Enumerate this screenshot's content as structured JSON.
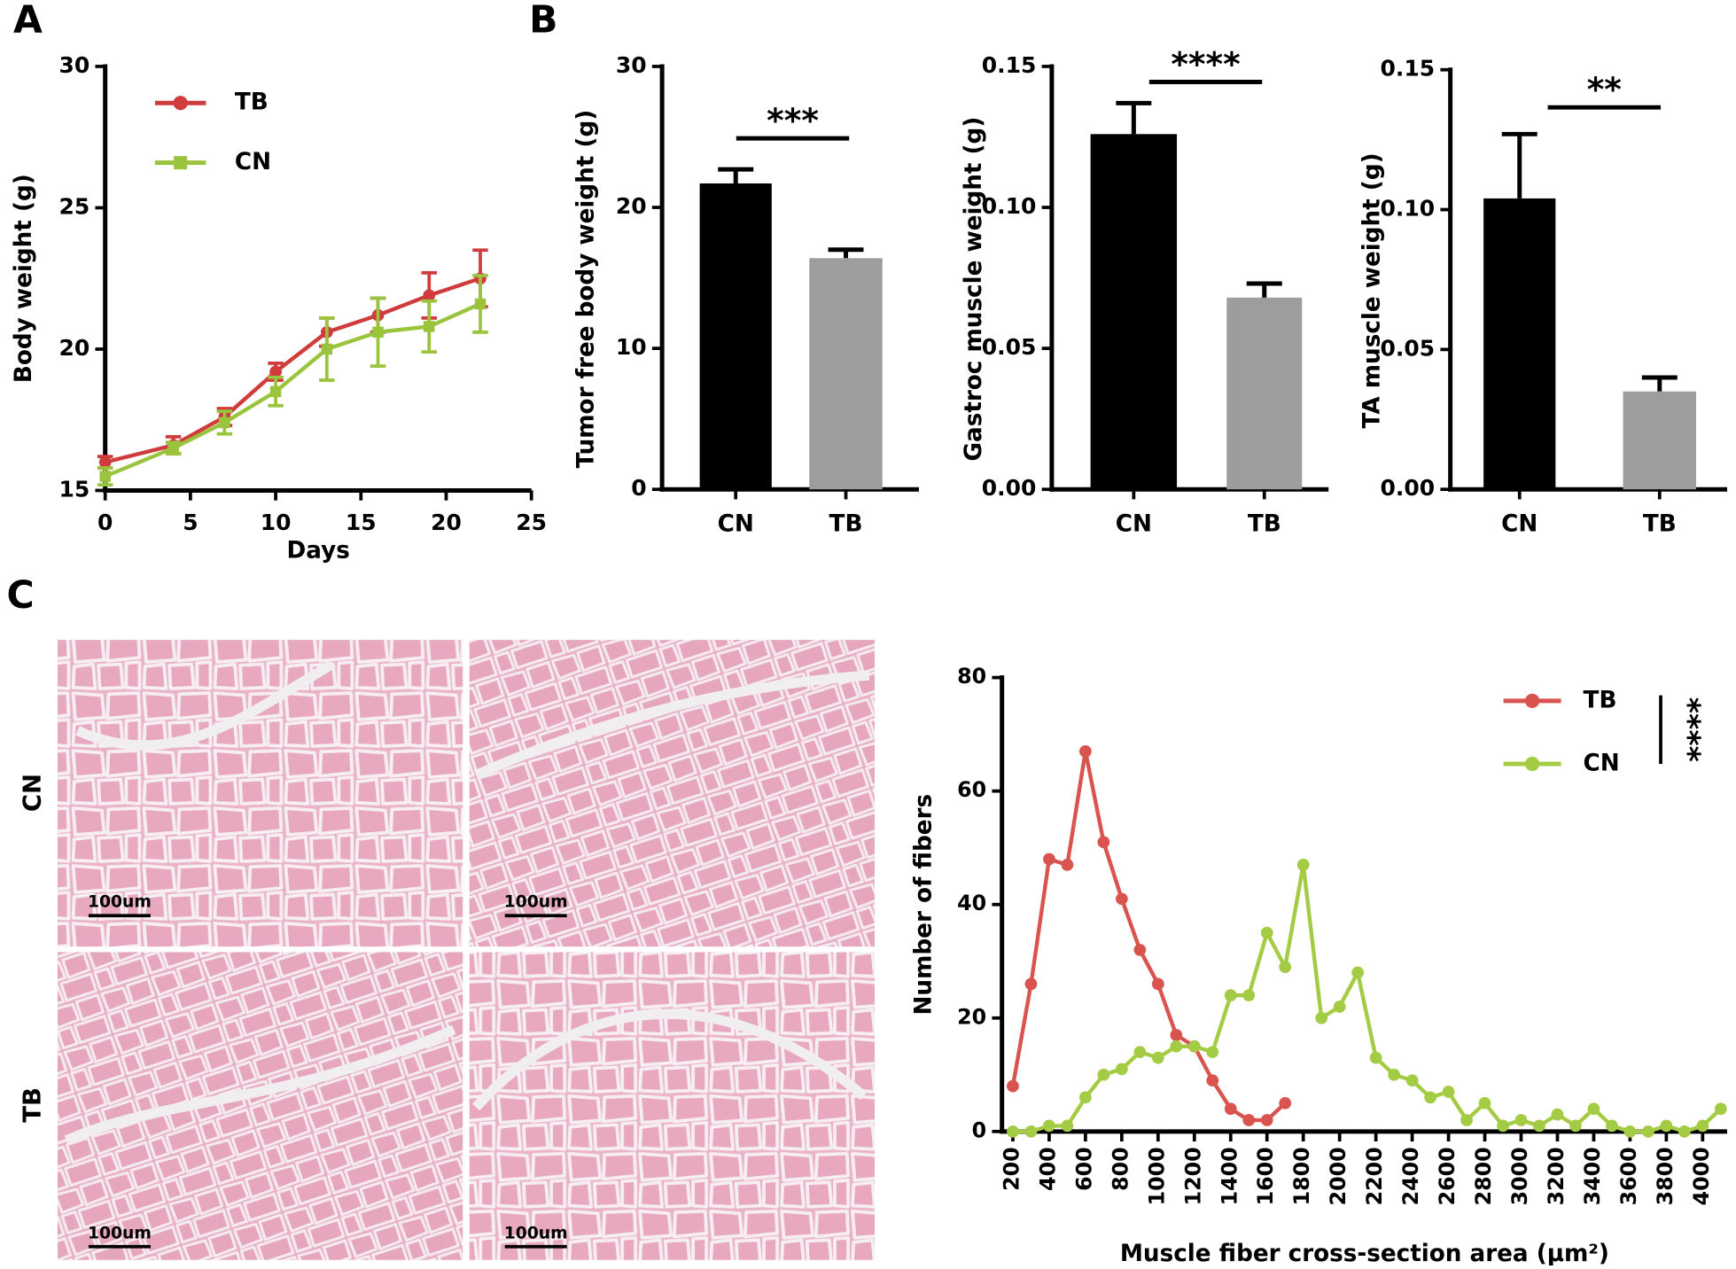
{
  "panel_labels": [
    "A",
    "B",
    "C"
  ],
  "histology": {
    "row_labels": [
      "CN",
      "TB"
    ],
    "scale_bar": "100um"
  },
  "chart_data": [
    {
      "type": "line",
      "x_label": "Days",
      "y_label": "Body weight (g)",
      "x": [
        0,
        4,
        7,
        10,
        13,
        16,
        19,
        22
      ],
      "xlim": [
        0,
        25
      ],
      "xticks": [
        0,
        5,
        10,
        15,
        20,
        25
      ],
      "ylim": [
        15,
        30
      ],
      "yticks": [
        15,
        20,
        25,
        30
      ],
      "legend": "upper left",
      "series": [
        {
          "name": "TB",
          "color": "#d03b3b",
          "marker": "circle",
          "values": [
            16.0,
            16.6,
            17.6,
            19.2,
            20.6,
            21.2,
            21.9,
            22.5
          ],
          "errors": [
            0.2,
            0.3,
            0.3,
            0.3,
            0.5,
            0.6,
            0.8,
            1.0
          ]
        },
        {
          "name": "CN",
          "color": "#9ac43c",
          "marker": "square",
          "values": [
            15.5,
            16.5,
            17.4,
            18.5,
            20.0,
            20.6,
            20.8,
            21.6
          ],
          "errors": [
            0.3,
            0.2,
            0.4,
            0.5,
            1.1,
            1.2,
            0.9,
            1.0
          ]
        }
      ]
    },
    {
      "type": "bar",
      "y_label": "Tumor free body weight (g)",
      "categories": [
        "CN",
        "TB"
      ],
      "values": [
        21.7,
        16.4
      ],
      "errors": [
        1.0,
        0.6
      ],
      "colors": [
        "#000000",
        "#9d9d9f"
      ],
      "ylim": [
        0,
        30
      ],
      "yticks": [
        0,
        10,
        20,
        30
      ],
      "annotation": "***"
    },
    {
      "type": "bar",
      "y_label": "Gastroc muscle weight (g)",
      "categories": [
        "CN",
        "TB"
      ],
      "values": [
        0.126,
        0.068
      ],
      "errors": [
        0.011,
        0.005
      ],
      "colors": [
        "#000000",
        "#9d9d9f"
      ],
      "ylim": [
        0,
        0.15
      ],
      "yticks": [
        {
          "value": 0,
          "label": "0.00"
        },
        0.05,
        {
          "value": 0.1,
          "label": "0.10"
        },
        0.15
      ],
      "annotation": "****"
    },
    {
      "type": "bar",
      "y_label": "TA muscle weight (g)",
      "categories": [
        "CN",
        "TB"
      ],
      "values": [
        0.104,
        0.035
      ],
      "errors": [
        0.023,
        0.005
      ],
      "colors": [
        "#000000",
        "#9d9d9f"
      ],
      "ylim": [
        0,
        0.15
      ],
      "yticks": [
        {
          "value": 0,
          "label": "0.00"
        },
        0.05,
        {
          "value": 0.1,
          "label": "0.10"
        },
        0.15
      ],
      "annotation": "**"
    },
    {
      "type": "line",
      "x_label": "Muscle fiber cross-section area (μm²)",
      "y_label": "Number of fibers",
      "x": [
        200,
        300,
        400,
        500,
        600,
        700,
        800,
        900,
        1000,
        1100,
        1200,
        1300,
        1400,
        1500,
        1600,
        1700,
        1800,
        1900,
        2000,
        2100,
        2200,
        2300,
        2400,
        2500,
        2600,
        2700,
        2800,
        2900,
        3000,
        3100,
        3200,
        3300,
        3400,
        3500,
        3600,
        3700,
        3800,
        3900,
        4000,
        4100
      ],
      "xlim": [
        140,
        4135
      ],
      "xticks": [
        200,
        400,
        600,
        800,
        1000,
        1200,
        1400,
        1600,
        1800,
        2000,
        2200,
        2400,
        2600,
        2800,
        3000,
        3200,
        3400,
        3600,
        3800,
        4000
      ],
      "ylim": [
        0,
        80
      ],
      "yticks": [
        0,
        20,
        40,
        60,
        80
      ],
      "legend": "upper right",
      "annotation": "****",
      "series": [
        {
          "name": "TB",
          "color": "#d9534f",
          "marker": "circle",
          "values": [
            8,
            26,
            48,
            47,
            67,
            51,
            41,
            32,
            26,
            17,
            15,
            9,
            4,
            2,
            2,
            5,
            null,
            null,
            null,
            null,
            null,
            null,
            null,
            null,
            null,
            null,
            null,
            null,
            null,
            null,
            null,
            null,
            null,
            null,
            null,
            null,
            null,
            null,
            null,
            null
          ]
        },
        {
          "name": "CN",
          "color": "#a3cc44",
          "marker": "circle",
          "values": [
            0,
            0,
            1,
            1,
            6,
            10,
            11,
            14,
            13,
            15,
            15,
            14,
            24,
            24,
            35,
            29,
            47,
            20,
            22,
            28,
            13,
            10,
            9,
            6,
            7,
            2,
            5,
            1,
            2,
            1,
            3,
            1,
            4,
            1,
            0,
            0,
            1,
            0,
            1,
            4
          ]
        }
      ]
    }
  ]
}
